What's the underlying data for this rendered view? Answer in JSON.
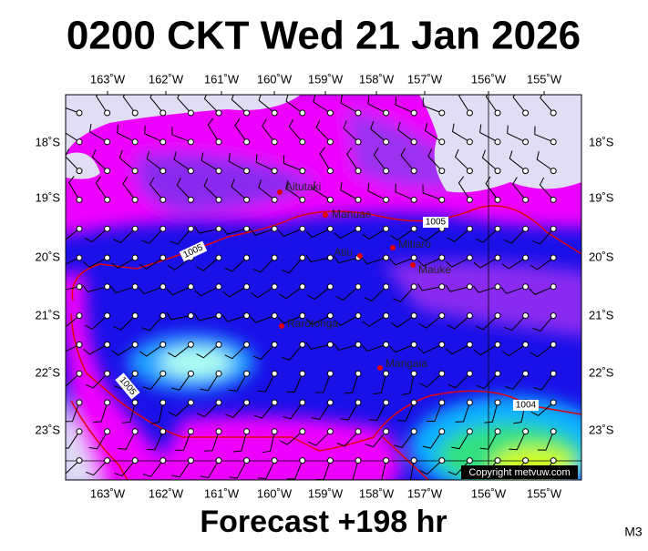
{
  "header": {
    "title": "0200 CKT Wed 21 Jan 2026"
  },
  "map": {
    "lon_labels": [
      "163˚W",
      "162˚W",
      "161˚W",
      "160˚W",
      "159˚W",
      "158˚W",
      "157˚W",
      "156˚W",
      "155˚W"
    ],
    "lat_labels": [
      "18˚S",
      "19˚S",
      "20˚S",
      "21˚S",
      "22˚S",
      "23˚S"
    ],
    "places": [
      "Aitutaki",
      "Manuae",
      "Atiu",
      "Mitiaro",
      "Mauke",
      "Rarotonga",
      "Mangaia"
    ],
    "isobar_labels": [
      "1005",
      "1005",
      "1005",
      "1004"
    ],
    "copyright": "Copyright metvuw.com"
  },
  "footer": {
    "forecast": "Forecast +198 hr",
    "code": "M3"
  }
}
